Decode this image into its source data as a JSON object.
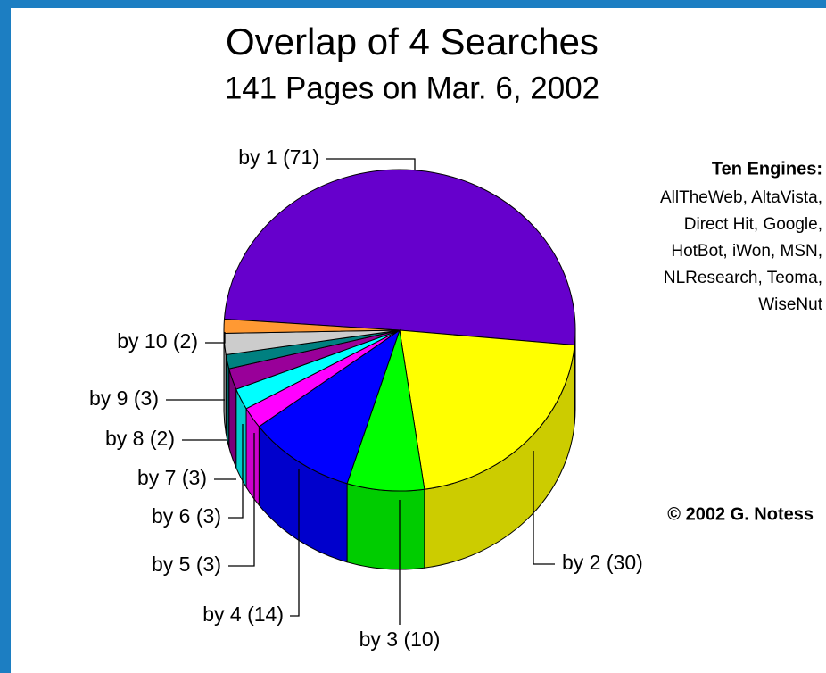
{
  "chart_data": {
    "type": "pie3d",
    "title": "Overlap of 4 Searches",
    "subtitle": "141 Pages on Mar. 6, 2002",
    "categories": [
      "by 1",
      "by 2",
      "by 3",
      "by 4",
      "by 5",
      "by 6",
      "by 7",
      "by 8",
      "by 9",
      "by 10"
    ],
    "values": [
      71,
      30,
      10,
      14,
      3,
      3,
      3,
      2,
      3,
      2
    ],
    "value_labels": [
      "(71)",
      "(30)",
      "(10)",
      "(14)",
      "(3)",
      "(3)",
      "(3)",
      "(2)",
      "(3)",
      "(2)"
    ],
    "colors": [
      "#6600cc",
      "#ffff00",
      "#00ff00",
      "#0000ff",
      "#ff00ff",
      "#00ffff",
      "#990099",
      "#008080",
      "#cccccc",
      "#ff9933"
    ],
    "annotations": {
      "engines_title": "Ten Engines:",
      "engines": [
        "AllTheWeb, AltaVista,",
        "Direct Hit, Google,",
        "HotBot, iWon, MSN,",
        "NLResearch, Teoma,",
        "WiseNut"
      ],
      "copyright": "© 2002 G. Notess"
    }
  }
}
